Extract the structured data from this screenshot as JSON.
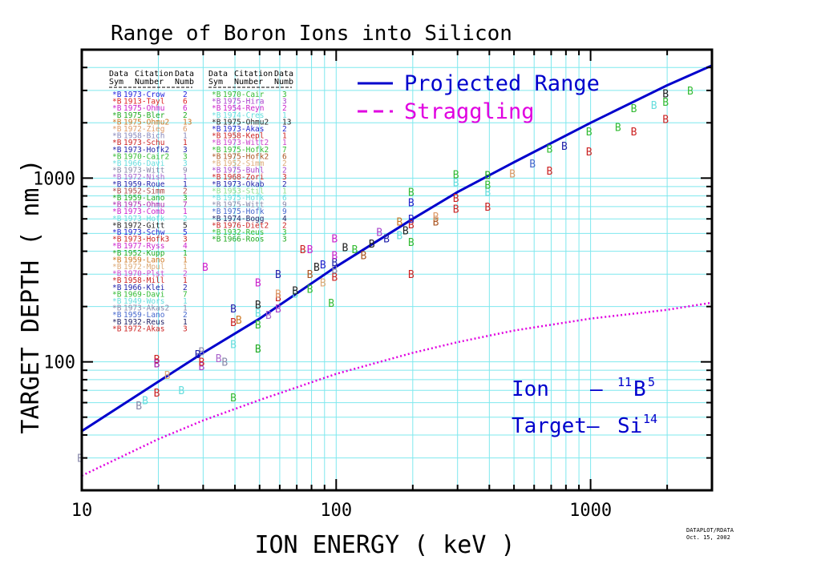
{
  "chart_data": {
    "type": "scatter",
    "title": "Range of Boron Ions into Silicon",
    "xlabel": "ION ENERGY ( keV )",
    "ylabel": "TARGET DEPTH ( nm )",
    "xscale": "log",
    "yscale": "log",
    "xlim": [
      10,
      3000
    ],
    "ylim": [
      20,
      5000
    ],
    "xticks": [
      {
        "value": 10,
        "label": "10"
      },
      {
        "value": 100,
        "label": "100"
      },
      {
        "value": 1000,
        "label": "1000"
      }
    ],
    "yticks": [
      {
        "value": 100,
        "label": "100"
      },
      {
        "value": 1000,
        "label": "1000"
      }
    ],
    "grid": true,
    "legend_position": "top-center",
    "marker_label": "B",
    "series": [
      {
        "name": "Projected Range",
        "style": "solid",
        "color": "#0000cc",
        "x": [
          10,
          20,
          30,
          50,
          100,
          200,
          300,
          500,
          1000,
          2000,
          3000
        ],
        "y": [
          42,
          78,
          112,
          172,
          330,
          600,
          840,
          1220,
          2000,
          3200,
          4100
        ]
      },
      {
        "name": "Straggling",
        "style": "dashed",
        "color": "#e000e0",
        "x": [
          10,
          20,
          30,
          50,
          100,
          200,
          300,
          500,
          1000,
          2000,
          3000
        ],
        "y": [
          24,
          38,
          48,
          62,
          86,
          112,
          128,
          148,
          172,
          192,
          210
        ]
      }
    ],
    "citations": [
      {
        "sym": "*B",
        "citation": "1973-Crow",
        "num": "2",
        "color": "#2222dd"
      },
      {
        "sym": "*B",
        "citation": "1913-Tayl",
        "num": "6",
        "color": "#dd2222"
      },
      {
        "sym": "*B",
        "citation": "1975-Ohmu",
        "num": "6",
        "color": "#cc22cc"
      },
      {
        "sym": "*B",
        "citation": "1975-Bler",
        "num": "2",
        "color": "#22aa22"
      },
      {
        "sym": "*B",
        "citation": "1975-Ohmu2",
        "num": "13",
        "color": "#cc7722"
      },
      {
        "sym": "*B",
        "citation": "1972-Zieg",
        "num": "6",
        "color": "#dd9966"
      },
      {
        "sym": "*B",
        "citation": "1958-Bich",
        "num": "1",
        "color": "#8888bb"
      },
      {
        "sym": "*B",
        "citation": "1973-Schu",
        "num": "1",
        "color": "#cc2222"
      },
      {
        "sym": "*B",
        "citation": "1973-Hofk2",
        "num": "3",
        "color": "#2222aa"
      },
      {
        "sym": "*B",
        "citation": "1970-Cair2",
        "num": "3",
        "color": "#33bb33"
      },
      {
        "sym": "*B",
        "citation": "1966-Davi",
        "num": "3",
        "color": "#66dddd"
      },
      {
        "sym": "*B",
        "citation": "1973-Witt",
        "num": "9",
        "color": "#8888aa"
      },
      {
        "sym": "*B",
        "citation": "1972-Nish",
        "num": "1",
        "color": "#aa66cc"
      },
      {
        "sym": "*B",
        "citation": "1959-Roue",
        "num": "1",
        "color": "#2222aa"
      },
      {
        "sym": "*B",
        "citation": "1952-Simm",
        "num": "2",
        "color": "#aa4444"
      },
      {
        "sym": "*B",
        "citation": "1959-Lano",
        "num": "3",
        "color": "#22aa22"
      },
      {
        "sym": "*B",
        "citation": "1975-Ohmu",
        "num": "7",
        "color": "#aa22aa"
      },
      {
        "sym": "*B",
        "citation": "1973-Comb",
        "num": "1",
        "color": "#cc22cc"
      },
      {
        "sym": "*B",
        "citation": "1973-Hofk",
        "num": "2",
        "color": "#66dddd"
      },
      {
        "sym": "*B",
        "citation": "1972-Gitt",
        "num": "5",
        "color": "#222222"
      },
      {
        "sym": "*B",
        "citation": "1973-Schw",
        "num": "5",
        "color": "#2222cc"
      },
      {
        "sym": "*B",
        "citation": "1973-Hofk3",
        "num": "3",
        "color": "#cc2222"
      },
      {
        "sym": "*B",
        "citation": "1977-Ryss",
        "num": "4",
        "color": "#cc22cc"
      },
      {
        "sym": "*B",
        "citation": "1952-Kupp",
        "num": "1",
        "color": "#22aa22"
      },
      {
        "sym": "*B",
        "citation": "1959-Lano",
        "num": "1",
        "color": "#cc7722"
      },
      {
        "sym": "*B",
        "citation": "1972-Mpul",
        "num": "1",
        "color": "#ddaa77"
      },
      {
        "sym": "*B",
        "citation": "1970-Plst",
        "num": "2",
        "color": "#cc44cc"
      },
      {
        "sym": "*B",
        "citation": "1958-Mill",
        "num": "1",
        "color": "#cc2222"
      },
      {
        "sym": "*B",
        "citation": "1966-Klei",
        "num": "2",
        "color": "#2222aa"
      },
      {
        "sym": "*B",
        "citation": "1969-Davi",
        "num": "7",
        "color": "#33bb33"
      },
      {
        "sym": "*B",
        "citation": "1949-Wors",
        "num": "1",
        "color": "#66dddd"
      },
      {
        "sym": "*B",
        "citation": "1973-Akas2",
        "num": "1",
        "color": "#8888aa"
      },
      {
        "sym": "*B",
        "citation": "1959-Lano",
        "num": "2",
        "color": "#4466cc"
      },
      {
        "sym": "*B",
        "citation": "1932-Reus",
        "num": "1",
        "color": "#222266"
      },
      {
        "sym": "*B",
        "citation": "1972-Akas",
        "num": "3",
        "color": "#cc2222"
      },
      {
        "sym": "*B",
        "citation": "1970-Cair",
        "num": "3",
        "color": "#33bb33"
      },
      {
        "sym": "*B",
        "citation": "1975-Hira",
        "num": "3",
        "color": "#aa44cc"
      },
      {
        "sym": "*B",
        "citation": "1954-Reyn",
        "num": "2",
        "color": "#cc22cc"
      },
      {
        "sym": "*B",
        "citation": "1974-Cres",
        "num": "1",
        "color": "#66dddd"
      },
      {
        "sym": "*B",
        "citation": "1975-Ohmu2",
        "num": "13",
        "color": "#222222"
      },
      {
        "sym": "*B",
        "citation": "1973-Akas",
        "num": "2",
        "color": "#2222cc"
      },
      {
        "sym": "*B",
        "citation": "1958-Kepl",
        "num": "1",
        "color": "#cc2222"
      },
      {
        "sym": "*B",
        "citation": "1973-Witt2",
        "num": "1",
        "color": "#cc44cc"
      },
      {
        "sym": "*B",
        "citation": "1975-Hofk2",
        "num": "7",
        "color": "#33bb33"
      },
      {
        "sym": "*B",
        "citation": "1975-Hofk2",
        "num": "6",
        "color": "#aa5522"
      },
      {
        "sym": "*B",
        "citation": "1952-Simm",
        "num": "2",
        "color": "#ddaa77"
      },
      {
        "sym": "*B",
        "citation": "1975-Buhl",
        "num": "2",
        "color": "#aa44cc"
      },
      {
        "sym": "*B",
        "citation": "1968-Zori",
        "num": "3",
        "color": "#cc2222"
      },
      {
        "sym": "*B",
        "citation": "1973-Okab",
        "num": "2",
        "color": "#2222aa"
      },
      {
        "sym": "*B",
        "citation": "1953-Stil",
        "num": "1",
        "color": "#88dd88"
      },
      {
        "sym": "*B",
        "citation": "1975-Hofk",
        "num": "6",
        "color": "#66dddd"
      },
      {
        "sym": "*B",
        "citation": "1975-Witt",
        "num": "9",
        "color": "#8888aa"
      },
      {
        "sym": "*B",
        "citation": "1975-Hofk",
        "num": "9",
        "color": "#4466cc"
      },
      {
        "sym": "*B",
        "citation": "1974-Bogg",
        "num": "4",
        "color": "#222266"
      },
      {
        "sym": "*B",
        "citation": "1976-Diet2",
        "num": "2",
        "color": "#cc2222"
      },
      {
        "sym": "*B",
        "citation": "1932-Reus",
        "num": "3",
        "color": "#33bb33"
      },
      {
        "sym": "*B",
        "citation": "1966-Roos",
        "num": "3",
        "color": "#22aa22"
      }
    ],
    "points": [
      {
        "x": 10,
        "y": 30,
        "c": "#8888aa"
      },
      {
        "x": 17,
        "y": 58,
        "c": "#8888aa"
      },
      {
        "x": 18,
        "y": 62,
        "c": "#66dddd"
      },
      {
        "x": 20,
        "y": 68,
        "c": "#cc2222"
      },
      {
        "x": 20,
        "y": 104,
        "c": "#cc2222"
      },
      {
        "x": 20,
        "y": 98,
        "c": "#aa22aa"
      },
      {
        "x": 22,
        "y": 85,
        "c": "#ddaa77"
      },
      {
        "x": 25,
        "y": 70,
        "c": "#66dddd"
      },
      {
        "x": 30,
        "y": 114,
        "c": "#8888aa"
      },
      {
        "x": 30,
        "y": 95,
        "c": "#aa44cc"
      },
      {
        "x": 30,
        "y": 100,
        "c": "#cc2222"
      },
      {
        "x": 29,
        "y": 110,
        "c": "#2222aa"
      },
      {
        "x": 31,
        "y": 330,
        "c": "#cc22cc"
      },
      {
        "x": 35,
        "y": 105,
        "c": "#aa66cc"
      },
      {
        "x": 37,
        "y": 100,
        "c": "#8888aa"
      },
      {
        "x": 40,
        "y": 64,
        "c": "#33bb33"
      },
      {
        "x": 40,
        "y": 125,
        "c": "#66dddd"
      },
      {
        "x": 40,
        "y": 165,
        "c": "#cc2222"
      },
      {
        "x": 40,
        "y": 195,
        "c": "#2222aa"
      },
      {
        "x": 42,
        "y": 170,
        "c": "#cc7722"
      },
      {
        "x": 50,
        "y": 118,
        "c": "#22aa22"
      },
      {
        "x": 50,
        "y": 160,
        "c": "#33bb33"
      },
      {
        "x": 50,
        "y": 185,
        "c": "#66dddd"
      },
      {
        "x": 50,
        "y": 205,
        "c": "#222222"
      },
      {
        "x": 50,
        "y": 270,
        "c": "#cc22cc"
      },
      {
        "x": 55,
        "y": 180,
        "c": "#aa66cc"
      },
      {
        "x": 60,
        "y": 195,
        "c": "#aa44cc"
      },
      {
        "x": 60,
        "y": 225,
        "c": "#cc2222"
      },
      {
        "x": 60,
        "y": 300,
        "c": "#2222aa"
      },
      {
        "x": 60,
        "y": 235,
        "c": "#dd9966"
      },
      {
        "x": 70,
        "y": 235,
        "c": "#66dddd"
      },
      {
        "x": 70,
        "y": 245,
        "c": "#222222"
      },
      {
        "x": 75,
        "y": 410,
        "c": "#cc2222"
      },
      {
        "x": 80,
        "y": 250,
        "c": "#33bb33"
      },
      {
        "x": 80,
        "y": 300,
        "c": "#aa5522"
      },
      {
        "x": 80,
        "y": 410,
        "c": "#cc22cc"
      },
      {
        "x": 85,
        "y": 330,
        "c": "#222222"
      },
      {
        "x": 90,
        "y": 270,
        "c": "#ddaa77"
      },
      {
        "x": 90,
        "y": 340,
        "c": "#2222cc"
      },
      {
        "x": 97,
        "y": 210,
        "c": "#33bb33"
      },
      {
        "x": 100,
        "y": 290,
        "c": "#cc2222"
      },
      {
        "x": 100,
        "y": 320,
        "c": "#8888aa"
      },
      {
        "x": 100,
        "y": 350,
        "c": "#2222aa"
      },
      {
        "x": 100,
        "y": 380,
        "c": "#cc22cc"
      },
      {
        "x": 100,
        "y": 470,
        "c": "#cc22cc"
      },
      {
        "x": 110,
        "y": 420,
        "c": "#222222"
      },
      {
        "x": 120,
        "y": 410,
        "c": "#33bb33"
      },
      {
        "x": 130,
        "y": 380,
        "c": "#aa5522"
      },
      {
        "x": 140,
        "y": 440,
        "c": "#222222"
      },
      {
        "x": 150,
        "y": 510,
        "c": "#aa44cc"
      },
      {
        "x": 160,
        "y": 470,
        "c": "#2222aa"
      },
      {
        "x": 180,
        "y": 490,
        "c": "#66dddd"
      },
      {
        "x": 180,
        "y": 580,
        "c": "#cc7722"
      },
      {
        "x": 190,
        "y": 520,
        "c": "#222222"
      },
      {
        "x": 200,
        "y": 300,
        "c": "#cc2222"
      },
      {
        "x": 200,
        "y": 560,
        "c": "#cc2222"
      },
      {
        "x": 200,
        "y": 600,
        "c": "#2222cc"
      },
      {
        "x": 200,
        "y": 740,
        "c": "#2222cc"
      },
      {
        "x": 200,
        "y": 840,
        "c": "#33bb33"
      },
      {
        "x": 200,
        "y": 450,
        "c": "#33bb33"
      },
      {
        "x": 250,
        "y": 580,
        "c": "#aa5522"
      },
      {
        "x": 250,
        "y": 620,
        "c": "#dd9966"
      },
      {
        "x": 300,
        "y": 680,
        "c": "#cc2222"
      },
      {
        "x": 300,
        "y": 780,
        "c": "#cc2222"
      },
      {
        "x": 300,
        "y": 950,
        "c": "#66dddd"
      },
      {
        "x": 300,
        "y": 1050,
        "c": "#33bb33"
      },
      {
        "x": 400,
        "y": 700,
        "c": "#cc2222"
      },
      {
        "x": 400,
        "y": 840,
        "c": "#66dddd"
      },
      {
        "x": 400,
        "y": 920,
        "c": "#33bb33"
      },
      {
        "x": 400,
        "y": 1040,
        "c": "#22aa22"
      },
      {
        "x": 500,
        "y": 1060,
        "c": "#dd9966"
      },
      {
        "x": 600,
        "y": 1200,
        "c": "#4466cc"
      },
      {
        "x": 700,
        "y": 1100,
        "c": "#cc2222"
      },
      {
        "x": 700,
        "y": 1450,
        "c": "#33bb33"
      },
      {
        "x": 800,
        "y": 1500,
        "c": "#2222aa"
      },
      {
        "x": 1000,
        "y": 1400,
        "c": "#cc2222"
      },
      {
        "x": 1000,
        "y": 1800,
        "c": "#33bb33"
      },
      {
        "x": 1300,
        "y": 1900,
        "c": "#33bb33"
      },
      {
        "x": 1500,
        "y": 1800,
        "c": "#cc2222"
      },
      {
        "x": 1500,
        "y": 2400,
        "c": "#33bb33"
      },
      {
        "x": 1800,
        "y": 2500,
        "c": "#66dddd"
      },
      {
        "x": 2000,
        "y": 2100,
        "c": "#cc2222"
      },
      {
        "x": 2000,
        "y": 2900,
        "c": "#222222"
      },
      {
        "x": 2000,
        "y": 2600,
        "c": "#33bb33"
      },
      {
        "x": 2500,
        "y": 3000,
        "c": "#33bb33"
      }
    ],
    "annotations": {
      "ion_label": "Ion",
      "ion_dash": "–",
      "ion_mass": "11",
      "ion_symbol": "B",
      "ion_z": "5",
      "target_label": "Target–",
      "target_symbol": "Si",
      "target_z": "14"
    },
    "table_headers": {
      "h1a": "Data",
      "h1b": "Sym",
      "h2a": "Citation",
      "h2b": "Number",
      "h3a": "Data",
      "h3b": "Numb"
    },
    "footer": {
      "line1": "DATAPLOT/RDATA",
      "line2": "Oct. 15, 2002"
    }
  }
}
